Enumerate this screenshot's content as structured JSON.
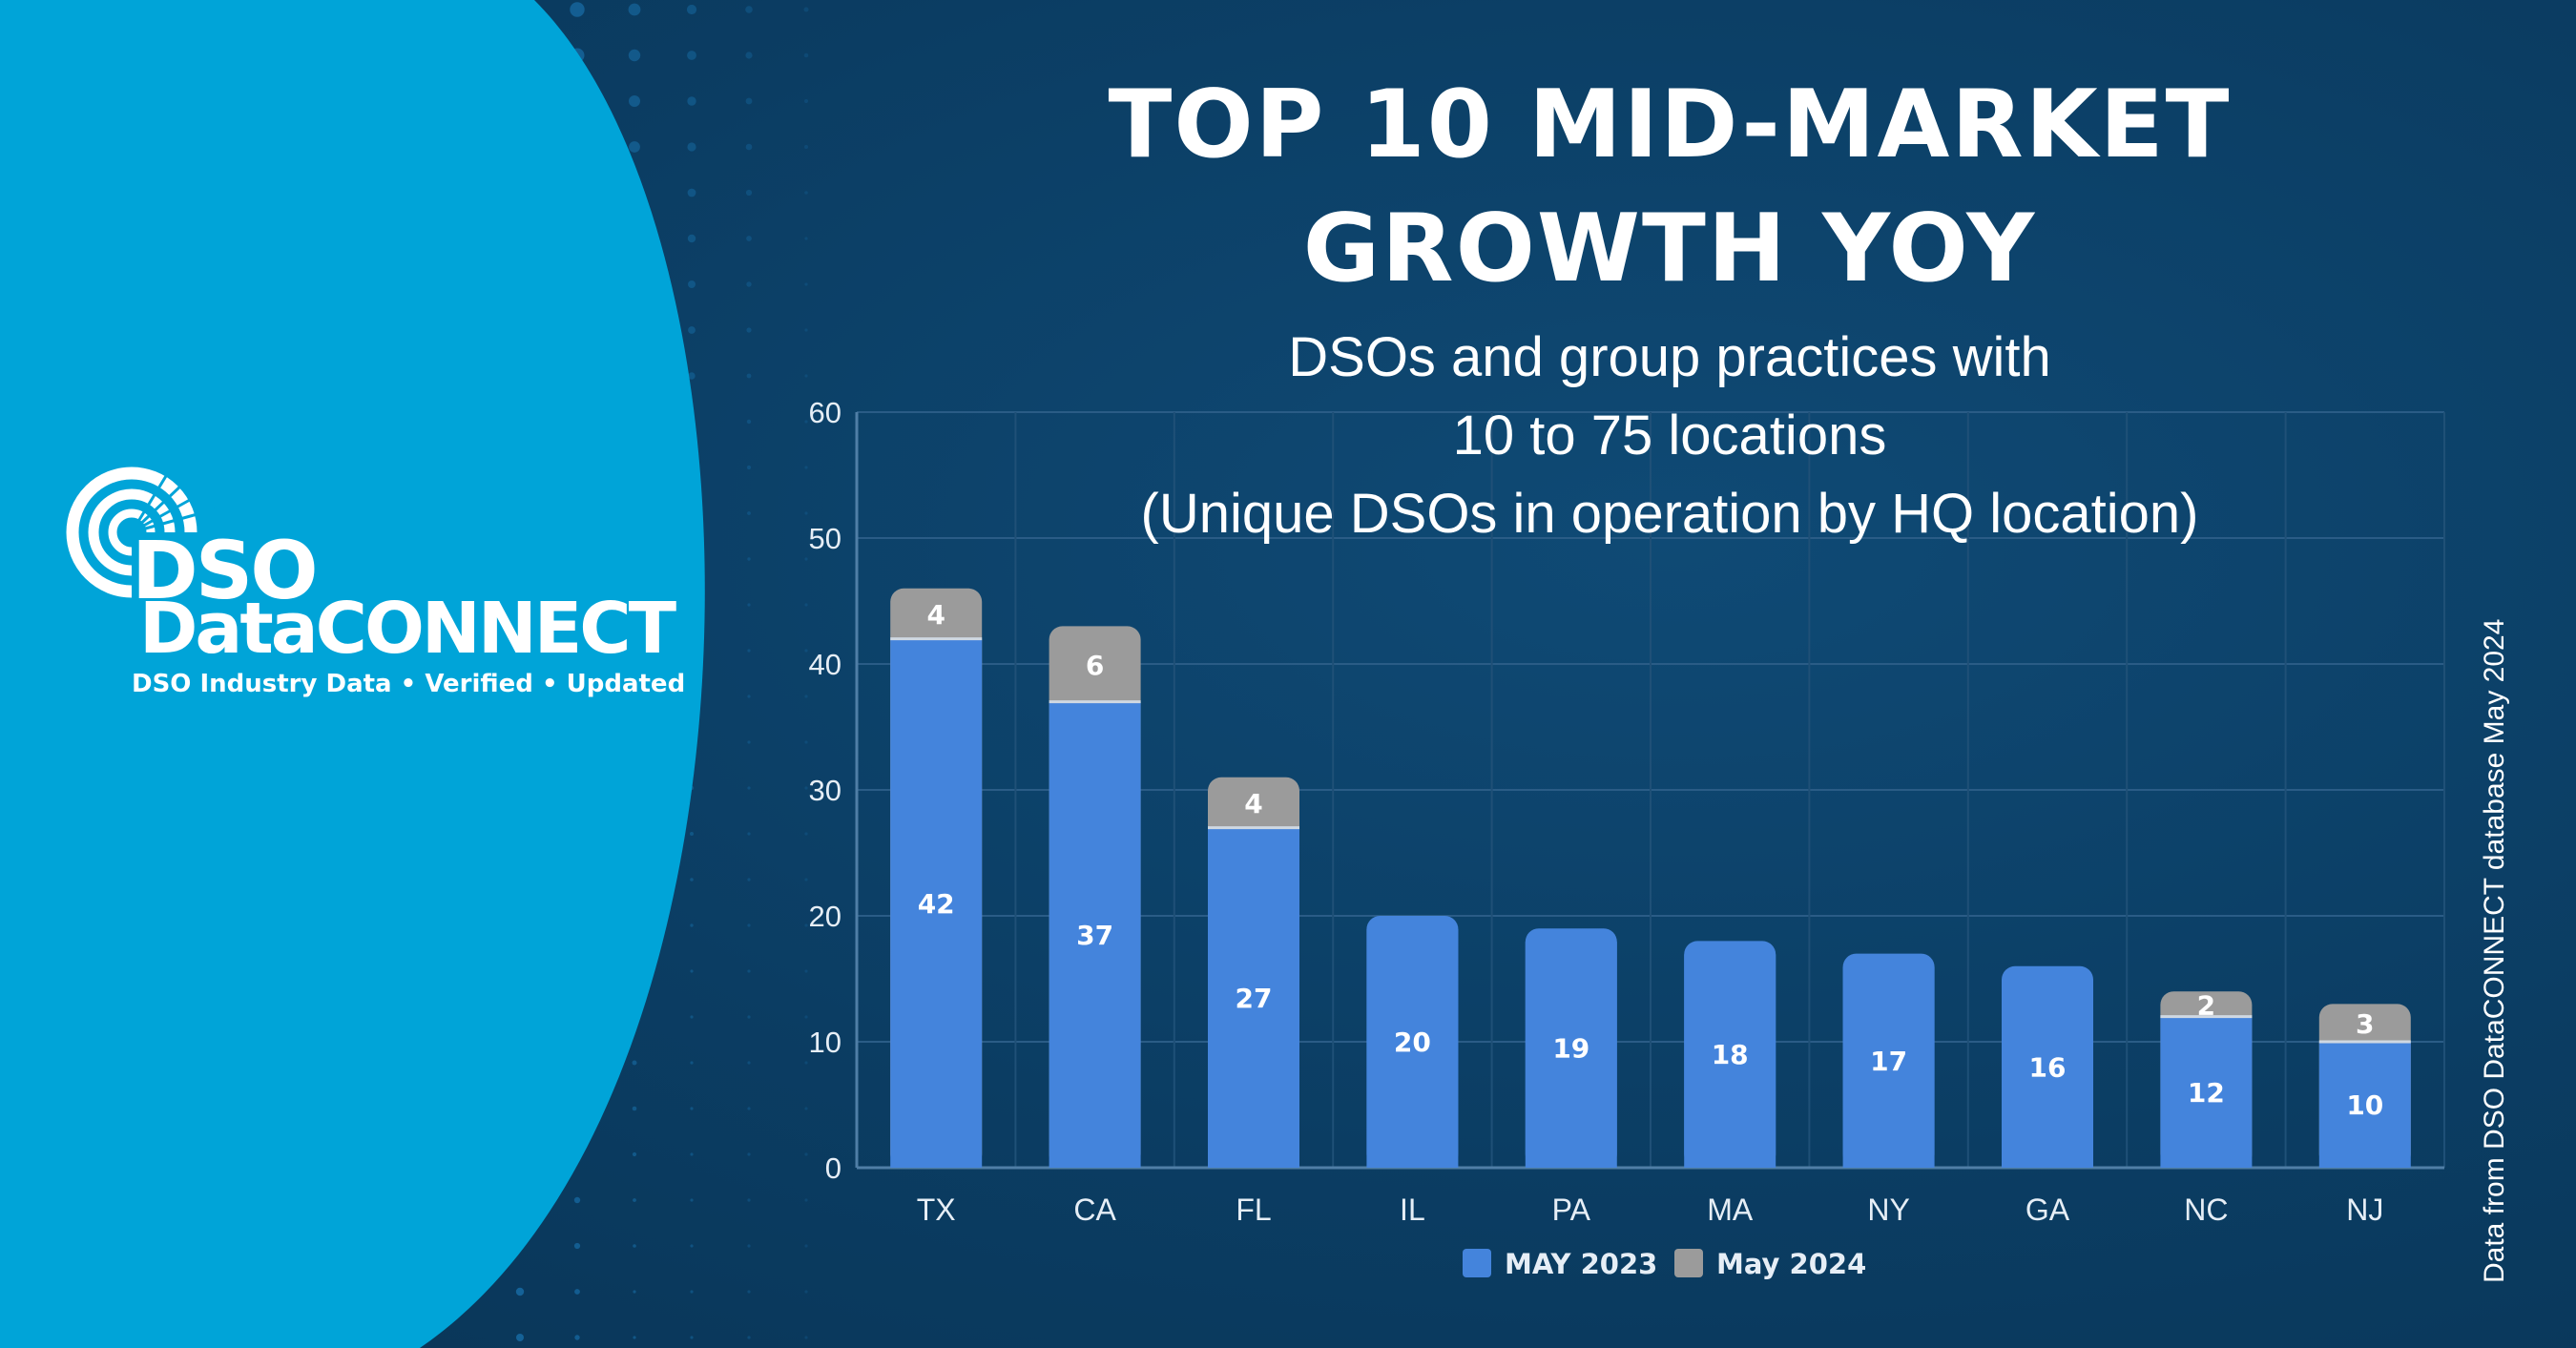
{
  "branding": {
    "logo_line1": "DSO",
    "logo_line2": "DataCONNECT",
    "tagline": "DSO Industry Data • Verified • Updated",
    "colors": {
      "background": "#0b3d63",
      "blob": "#00a4d8",
      "text": "#ffffff"
    }
  },
  "header": {
    "title_line1": "TOP 10 MID-MARKET",
    "title_line2": "GROWTH YOY",
    "subtitle_line1": "DSOs and group practices with",
    "subtitle_line2": "10 to 75 locations",
    "subtitle_line3": "(Unique DSOs in operation by HQ location)"
  },
  "source_note": "Data from DSO DataCONNECT database May 2024",
  "chart_data": {
    "type": "bar",
    "stacked": true,
    "categories": [
      "TX",
      "CA",
      "FL",
      "IL",
      "PA",
      "MA",
      "NY",
      "GA",
      "NC",
      "NJ"
    ],
    "series": [
      {
        "name": "MAY 2023",
        "color": "#4484dc",
        "values": [
          42,
          37,
          27,
          20,
          19,
          18,
          17,
          16,
          12,
          10
        ]
      },
      {
        "name": "May 2024",
        "color": "#9b9b9b",
        "values": [
          4,
          6,
          4,
          0,
          0,
          0,
          0,
          0,
          2,
          3
        ]
      }
    ],
    "ylim": [
      0,
      60
    ],
    "yticks": [
      "0",
      "10",
      "20",
      "30",
      "40",
      "50",
      "60"
    ],
    "grid": true,
    "legend_position": "bottom"
  }
}
